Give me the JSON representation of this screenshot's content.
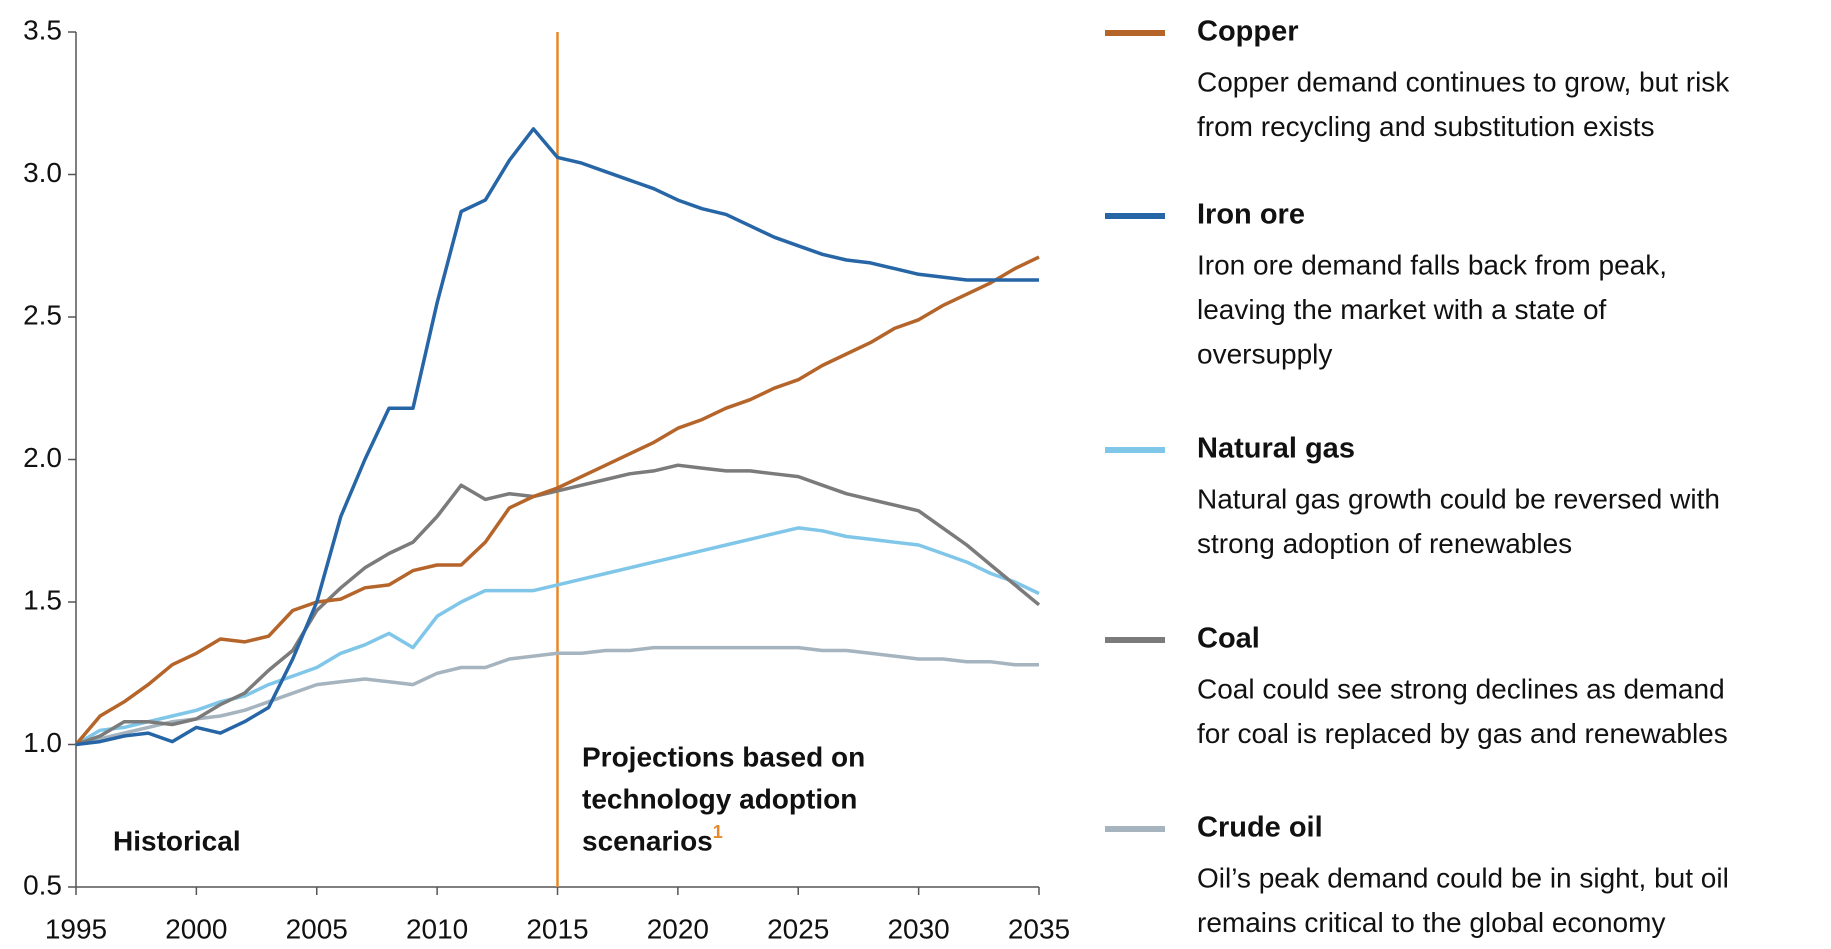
{
  "chart_data": {
    "type": "line",
    "x": [
      1995,
      1996,
      1997,
      1998,
      1999,
      2000,
      2001,
      2002,
      2003,
      2004,
      2005,
      2006,
      2007,
      2008,
      2009,
      2010,
      2011,
      2012,
      2013,
      2014,
      2015,
      2016,
      2017,
      2018,
      2019,
      2020,
      2021,
      2022,
      2023,
      2024,
      2025,
      2026,
      2027,
      2028,
      2029,
      2030,
      2031,
      2032,
      2033,
      2034,
      2035
    ],
    "series": [
      {
        "name": "Copper",
        "color": "#b5652a",
        "description": [
          "Copper demand continues to grow, but risk",
          "from recycling and substitution exists"
        ],
        "values": [
          1.0,
          1.1,
          1.15,
          1.21,
          1.28,
          1.32,
          1.37,
          1.36,
          1.38,
          1.47,
          1.5,
          1.51,
          1.55,
          1.56,
          1.61,
          1.63,
          1.63,
          1.71,
          1.83,
          1.87,
          1.9,
          1.94,
          1.98,
          2.02,
          2.06,
          2.11,
          2.14,
          2.18,
          2.21,
          2.25,
          2.28,
          2.33,
          2.37,
          2.41,
          2.46,
          2.49,
          2.54,
          2.58,
          2.62,
          2.67,
          2.71
        ]
      },
      {
        "name": "Iron ore",
        "color": "#2766a6",
        "description": [
          "Iron ore demand falls back from peak,",
          "leaving the market with a state of",
          "oversupply"
        ],
        "values": [
          1.0,
          1.01,
          1.03,
          1.04,
          1.01,
          1.06,
          1.04,
          1.08,
          1.13,
          1.3,
          1.5,
          1.8,
          2.0,
          2.18,
          2.18,
          2.55,
          2.87,
          2.91,
          3.05,
          3.16,
          3.06,
          3.04,
          3.01,
          2.98,
          2.95,
          2.91,
          2.88,
          2.86,
          2.82,
          2.78,
          2.75,
          2.72,
          2.7,
          2.69,
          2.67,
          2.65,
          2.64,
          2.63,
          2.63,
          2.63,
          2.63
        ]
      },
      {
        "name": "Natural gas",
        "color": "#7fc6e8",
        "description": [
          "Natural gas growth could be reversed with",
          "strong adoption of renewables"
        ],
        "values": [
          1.0,
          1.05,
          1.06,
          1.08,
          1.1,
          1.12,
          1.15,
          1.17,
          1.21,
          1.24,
          1.27,
          1.32,
          1.35,
          1.39,
          1.34,
          1.45,
          1.5,
          1.54,
          1.54,
          1.54,
          1.56,
          1.58,
          1.6,
          1.62,
          1.64,
          1.66,
          1.68,
          1.7,
          1.72,
          1.74,
          1.76,
          1.75,
          1.73,
          1.72,
          1.71,
          1.7,
          1.67,
          1.64,
          1.6,
          1.57,
          1.53
        ]
      },
      {
        "name": "Coal",
        "color": "#7b7b7b",
        "description": [
          "Coal could see strong declines as demand",
          "for coal is replaced by gas and renewables"
        ],
        "values": [
          1.0,
          1.03,
          1.08,
          1.08,
          1.07,
          1.09,
          1.14,
          1.18,
          1.26,
          1.33,
          1.47,
          1.55,
          1.62,
          1.67,
          1.71,
          1.8,
          1.91,
          1.86,
          1.88,
          1.87,
          1.89,
          1.91,
          1.93,
          1.95,
          1.96,
          1.98,
          1.97,
          1.96,
          1.96,
          1.95,
          1.94,
          1.91,
          1.88,
          1.86,
          1.84,
          1.82,
          1.76,
          1.7,
          1.63,
          1.56,
          1.49
        ]
      },
      {
        "name": "Crude oil",
        "color": "#a5b4bf",
        "description": [
          "Oil’s peak demand could be in sight, but oil",
          "remains critical to the global economy"
        ],
        "values": [
          1.0,
          1.02,
          1.04,
          1.06,
          1.08,
          1.09,
          1.1,
          1.12,
          1.15,
          1.18,
          1.21,
          1.22,
          1.23,
          1.22,
          1.21,
          1.25,
          1.27,
          1.27,
          1.3,
          1.31,
          1.32,
          1.32,
          1.33,
          1.33,
          1.34,
          1.34,
          1.34,
          1.34,
          1.34,
          1.34,
          1.34,
          1.33,
          1.33,
          1.32,
          1.31,
          1.3,
          1.3,
          1.29,
          1.29,
          1.28,
          1.28
        ]
      }
    ],
    "xlim": [
      1995,
      2035
    ],
    "xticks": [
      1995,
      2000,
      2005,
      2010,
      2015,
      2020,
      2025,
      2030,
      2035
    ],
    "ylim": [
      0.5,
      3.5
    ],
    "yticks": [
      0.5,
      {
        "value": 1,
        "label": "1.0"
      },
      1.5,
      {
        "value": 2,
        "label": "2.0"
      },
      2.5,
      {
        "value": 3,
        "label": "3.0"
      },
      3.5
    ],
    "vline": {
      "x": 2015,
      "color": "#e6892b"
    },
    "annotations": {
      "historical": "Historical",
      "projection": [
        "Projections based on",
        "technology adoption",
        "scenarios"
      ],
      "footnote": "1"
    }
  }
}
